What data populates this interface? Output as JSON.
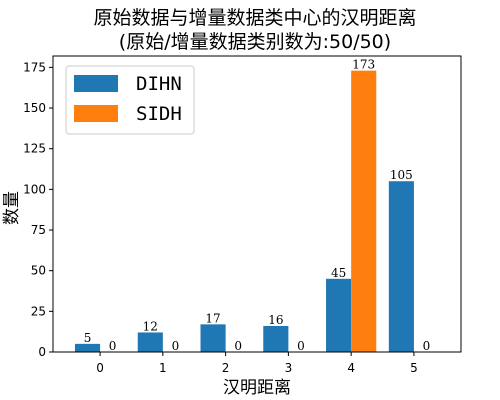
{
  "chart_data": {
    "type": "bar",
    "title": "原始数据与增量数据类中心的汉明距离",
    "subtitle": "(原始/增量数据类别数为:50/50)",
    "xlabel": "汉明距离",
    "ylabel": "数量",
    "categories": [
      "0",
      "1",
      "2",
      "3",
      "4",
      "5"
    ],
    "series": [
      {
        "name": "DIHN",
        "color": "#1f77b4",
        "values": [
          5,
          12,
          17,
          16,
          45,
          105
        ]
      },
      {
        "name": "SIDH",
        "color": "#ff7f0e",
        "values": [
          0,
          0,
          0,
          0,
          173,
          0
        ]
      }
    ],
    "ylim": [
      0,
      182
    ],
    "yticks": [
      0,
      25,
      50,
      75,
      100,
      125,
      150,
      175
    ],
    "grid": false,
    "legend_position": "top-left"
  }
}
